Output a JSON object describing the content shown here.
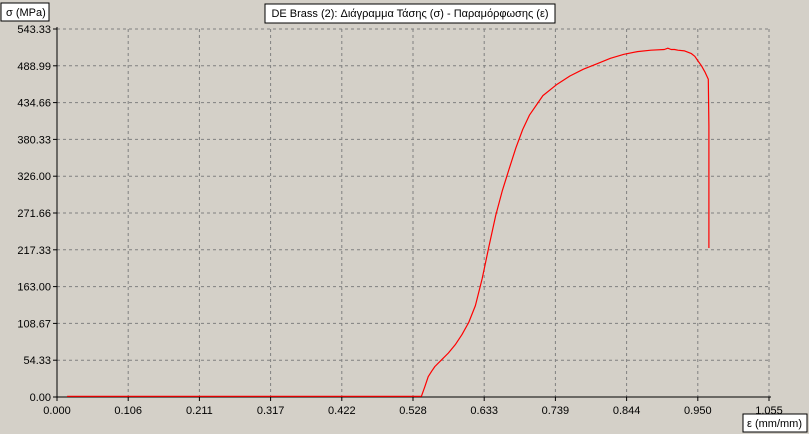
{
  "chart_data": {
    "type": "line",
    "title": "DE Brass (2): Διάγραμμα Τάσης (σ) - Παραμόρφωσης (ε)",
    "xlabel": "ε (mm/mm)",
    "ylabel": "σ (MPa)",
    "xlim": [
      0,
      1.055
    ],
    "ylim": [
      0,
      543.33
    ],
    "x_ticks": [
      "0.000",
      "0.106",
      "0.211",
      "0.317",
      "0.422",
      "0.528",
      "0.633",
      "0.739",
      "0.844",
      "0.950",
      "1.055"
    ],
    "y_ticks": [
      "0.00",
      "54.33",
      "108.67",
      "163.00",
      "217.33",
      "271.66",
      "326.00",
      "380.33",
      "434.66",
      "488.99",
      "543.33"
    ],
    "grid": true,
    "colors": {
      "line": "#ff0000",
      "background": "#d4d0c8",
      "grid": "#808080"
    },
    "series": [
      {
        "x": [
          0.015,
          0.1,
          0.2,
          0.3,
          0.4,
          0.5,
          0.54,
          0.545,
          0.55,
          0.555,
          0.56,
          0.57,
          0.58,
          0.59,
          0.6,
          0.61,
          0.62,
          0.63,
          0.64,
          0.65,
          0.66,
          0.67,
          0.68,
          0.69,
          0.7,
          0.72,
          0.74,
          0.76,
          0.78,
          0.8,
          0.82,
          0.84,
          0.86,
          0.88,
          0.9,
          0.905,
          0.91,
          0.915,
          0.92,
          0.93,
          0.94,
          0.945,
          0.95,
          0.955,
          0.96,
          0.965,
          0.966,
          0.966,
          0.966
        ],
        "y": [
          1,
          1,
          1,
          1,
          1,
          1,
          1,
          15,
          30,
          38,
          45,
          55,
          65,
          77,
          92,
          110,
          135,
          175,
          222,
          268,
          305,
          337,
          368,
          395,
          416,
          445,
          461,
          474,
          484,
          492,
          500,
          506,
          510,
          512,
          513,
          515,
          513,
          513,
          512,
          511,
          507,
          503,
          496,
          489,
          480,
          469,
          400,
          300,
          220
        ]
      }
    ]
  }
}
